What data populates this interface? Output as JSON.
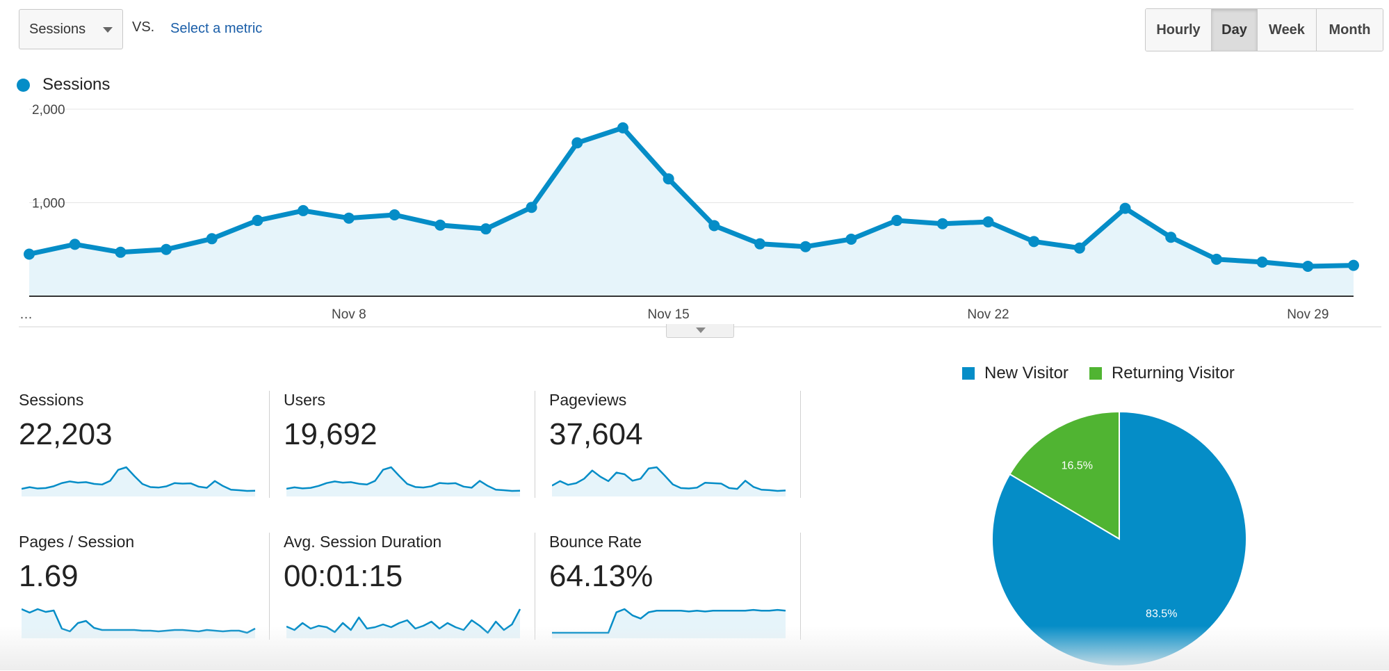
{
  "controls": {
    "metric_select": "Sessions",
    "vs_label": "VS.",
    "select_metric_link": "Select a metric",
    "granularity": [
      "Hourly",
      "Day",
      "Week",
      "Month"
    ],
    "granularity_active": "Day"
  },
  "legend": {
    "series_label": "Sessions",
    "color": "#058dc7"
  },
  "chart_data": [
    {
      "type": "area",
      "series": [
        {
          "name": "Sessions",
          "color": "#058dc7",
          "values": [
            450,
            555,
            470,
            500,
            615,
            810,
            915,
            835,
            870,
            760,
            720,
            950,
            1640,
            1800,
            1255,
            755,
            560,
            530,
            610,
            810,
            775,
            795,
            585,
            515,
            940,
            630,
            395,
            365,
            320,
            330
          ]
        }
      ],
      "x_ticks": [
        "…",
        "Nov 8",
        "Nov 15",
        "Nov 22",
        "Nov 29"
      ],
      "y_ticks": [
        "2,000",
        "1,000"
      ],
      "ylim": [
        0,
        2000
      ],
      "grid": true
    },
    {
      "type": "pie",
      "slices": [
        {
          "label": "New Visitor",
          "value": 83.5,
          "display": "83.5%",
          "color": "#058dc7"
        },
        {
          "label": "Returning Visitor",
          "value": 16.5,
          "display": "16.5%",
          "color": "#50b432"
        }
      ],
      "legend_placement": "top"
    }
  ],
  "scorecards": [
    {
      "label": "Sessions",
      "value": "22,203",
      "spark": [
        450,
        555,
        470,
        500,
        615,
        810,
        915,
        835,
        870,
        760,
        720,
        950,
        1640,
        1800,
        1255,
        755,
        560,
        530,
        610,
        810,
        775,
        795,
        585,
        515,
        940,
        630,
        395,
        365,
        320,
        330
      ]
    },
    {
      "label": "Users",
      "value": "19,692",
      "spark": [
        420,
        500,
        440,
        470,
        580,
        740,
        830,
        760,
        790,
        700,
        660,
        860,
        1480,
        1620,
        1140,
        690,
        520,
        490,
        560,
        740,
        710,
        730,
        540,
        480,
        860,
        580,
        370,
        340,
        300,
        310
      ]
    },
    {
      "label": "Pageviews",
      "value": "37,604",
      "spark": [
        760,
        980,
        800,
        880,
        1100,
        1500,
        1200,
        980,
        1400,
        1320,
        1000,
        1100,
        1600,
        1660,
        1250,
        820,
        640,
        620,
        660,
        900,
        880,
        860,
        640,
        600,
        1000,
        700,
        560,
        540,
        500,
        520
      ]
    },
    {
      "label": "Pages / Session",
      "value": "1.69",
      "spark": [
        1.9,
        1.85,
        1.9,
        1.86,
        1.88,
        1.62,
        1.58,
        1.7,
        1.73,
        1.63,
        1.6,
        1.6,
        1.6,
        1.6,
        1.6,
        1.59,
        1.59,
        1.58,
        1.59,
        1.6,
        1.6,
        1.59,
        1.58,
        1.6,
        1.59,
        1.58,
        1.59,
        1.59,
        1.56,
        1.62
      ]
    },
    {
      "label": "Avg. Session Duration",
      "value": "00:01:15",
      "spark": [
        75,
        70,
        80,
        72,
        76,
        74,
        67,
        80,
        70,
        88,
        72,
        74,
        78,
        74,
        80,
        84,
        72,
        76,
        82,
        72,
        80,
        74,
        70,
        84,
        76,
        66,
        82,
        70,
        78,
        100
      ]
    },
    {
      "label": "Bounce Rate",
      "value": "64.13%",
      "spark": [
        40,
        40,
        40,
        40,
        40,
        40,
        40,
        40,
        66,
        70,
        62,
        58,
        66,
        68,
        68,
        68,
        68,
        67,
        68,
        67,
        68,
        68,
        68,
        68,
        68,
        69,
        68,
        68,
        69,
        68
      ]
    }
  ]
}
